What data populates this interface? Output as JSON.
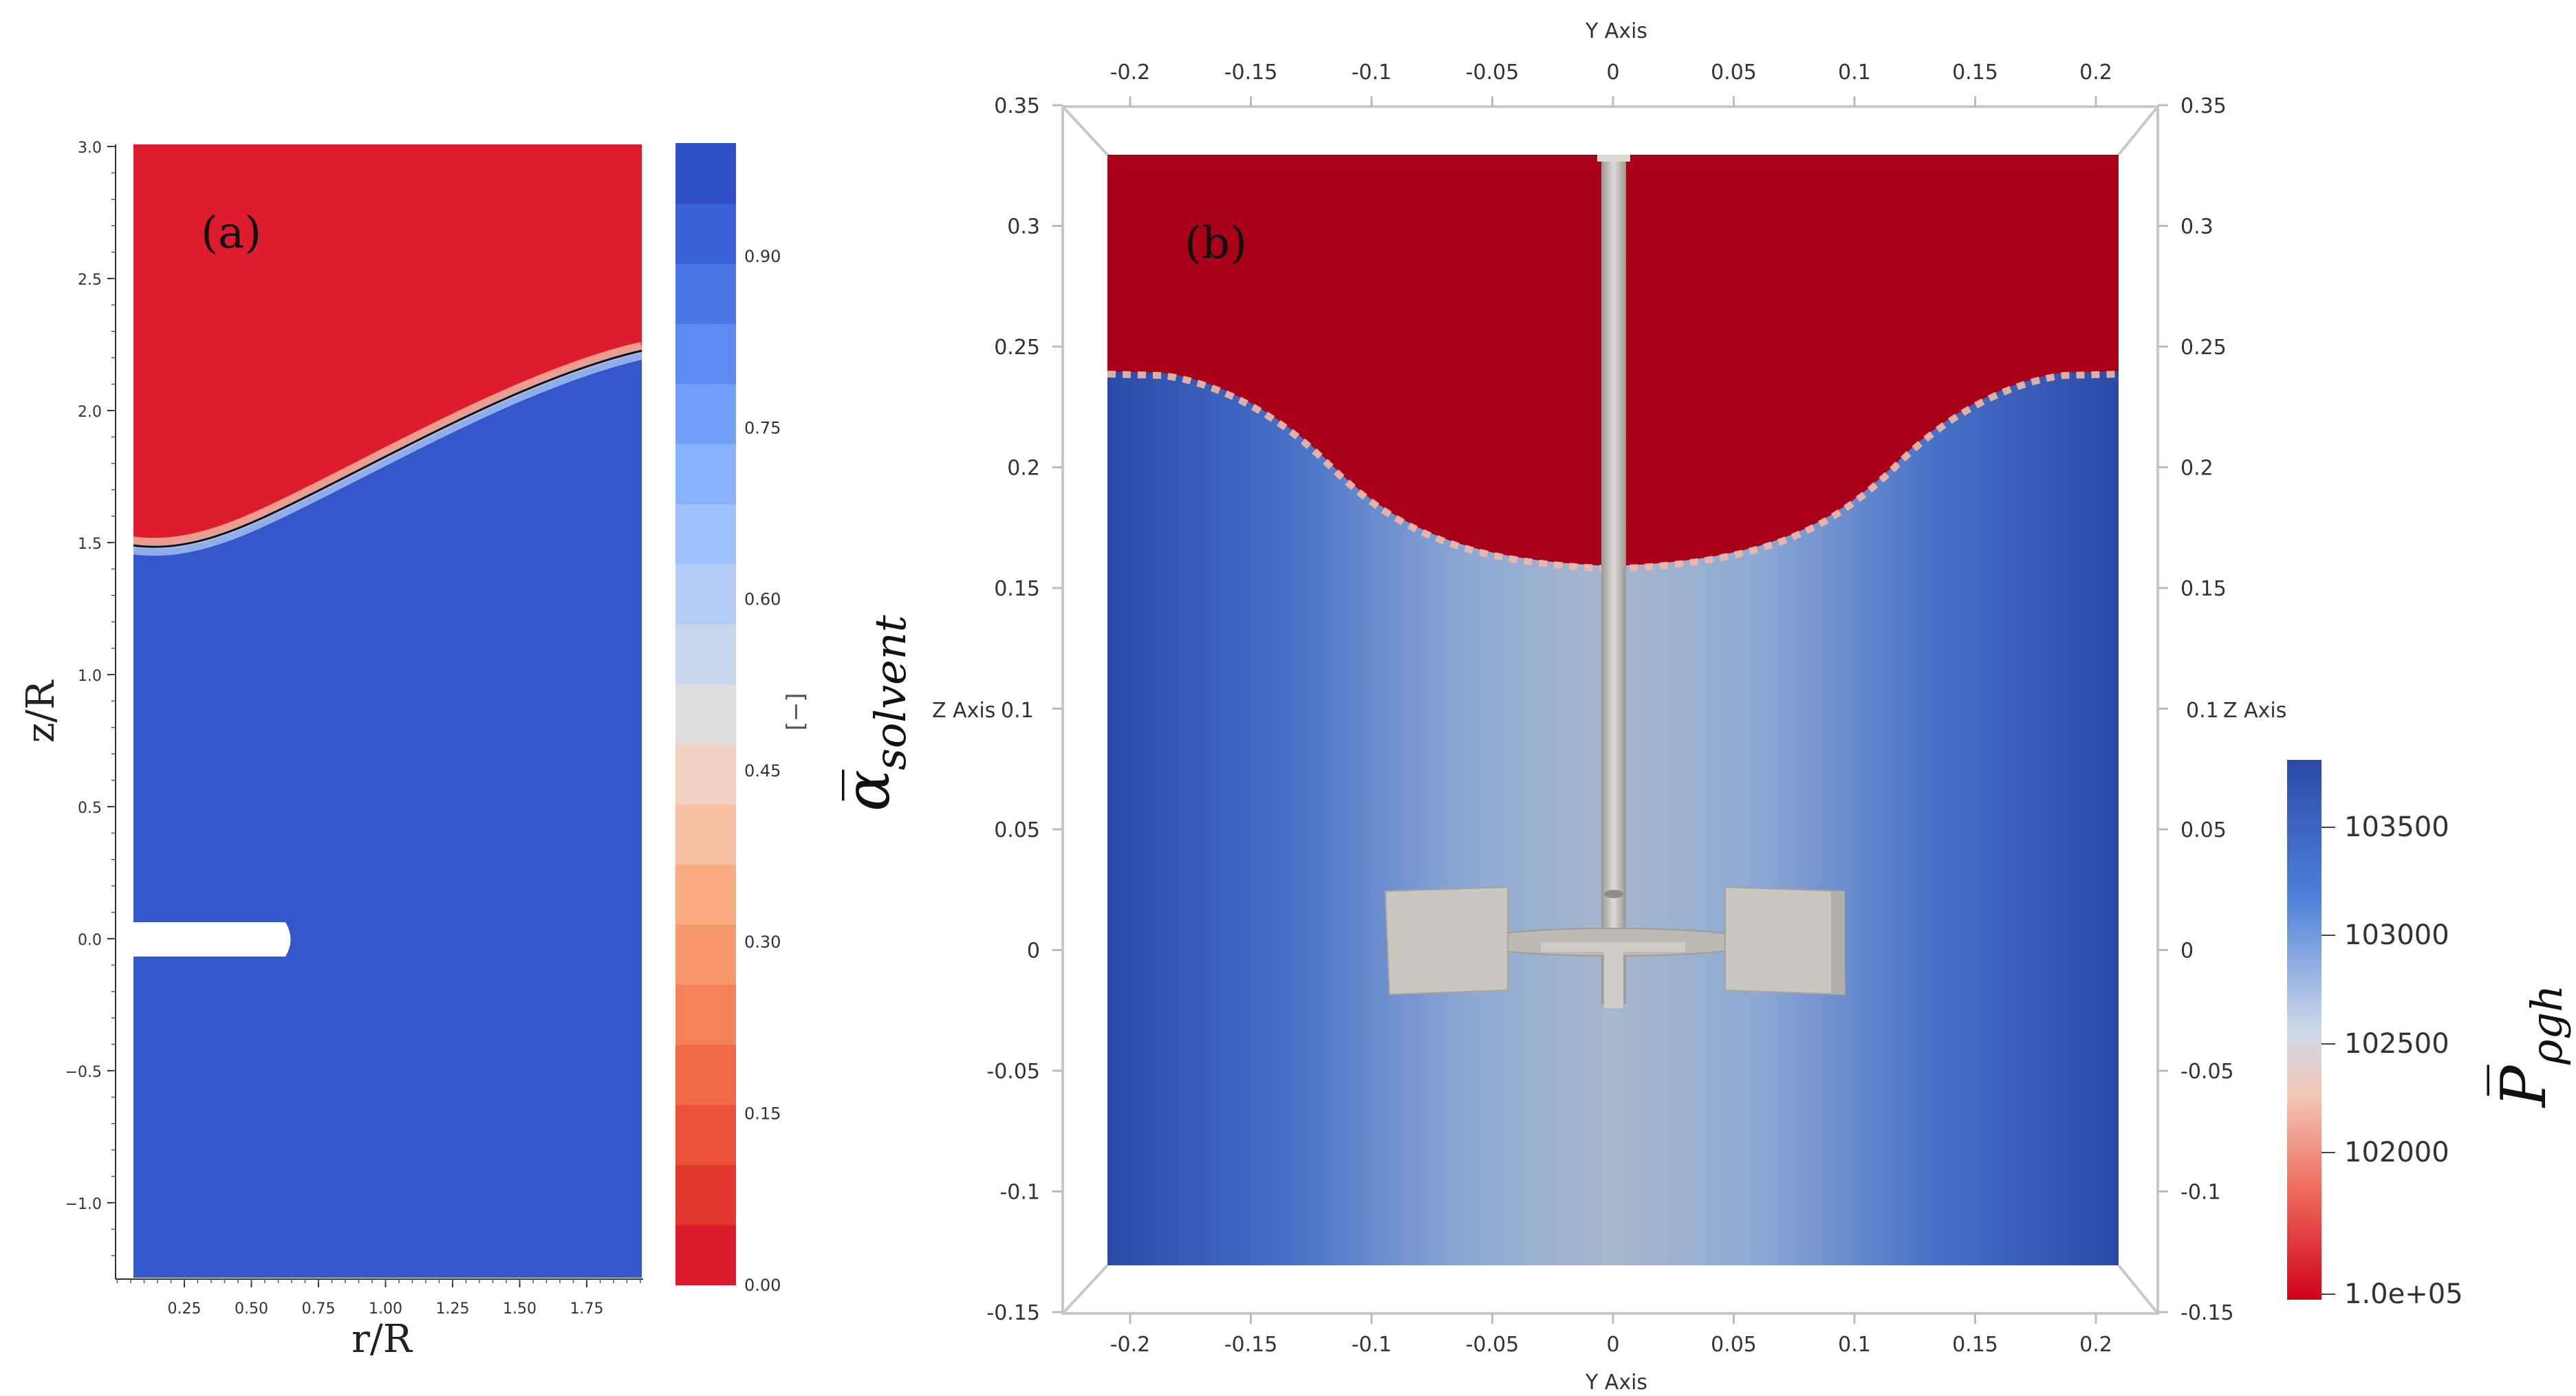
{
  "panel_a": {
    "label": "(a)",
    "xlabel": "r/R",
    "ylabel": "z/R",
    "x_ticks": [
      "0.25",
      "0.50",
      "0.75",
      "1.00",
      "1.25",
      "1.50",
      "1.75"
    ],
    "y_ticks": [
      "3.0",
      "2.5",
      "2.0",
      "1.5",
      "1.0",
      "0.5",
      "0.0",
      "−0.5",
      "−1.0"
    ],
    "colorbar": {
      "ticks": [
        "0.90",
        "0.75",
        "0.60",
        "0.45",
        "0.30",
        "0.15",
        "0.00"
      ],
      "unit": "[−]",
      "title": "α̅",
      "title_sub": "solvent",
      "bands": [
        "#d81a2b",
        "#e2372f",
        "#ea5139",
        "#f06a47",
        "#f48158",
        "#f7976c",
        "#f9ac82",
        "#f7c0a3",
        "#f0d1c2",
        "#e0ddde",
        "#c9d7ec",
        "#b3cdf6",
        "#9ec2fb",
        "#88b2fd",
        "#729ff9",
        "#5d8bf1",
        "#4a76e6",
        "#3a61d8",
        "#2f50c6"
      ]
    },
    "colors": {
      "gas": "#dd1d2e",
      "liquid": "#3458cc"
    }
  },
  "panel_b": {
    "label": "(b)",
    "x_axis_title": "Y Axis",
    "z_axis_title": "Z Axis",
    "z_axis_title_left_tick": "0.1",
    "z_axis_title_right_tick": "0.1",
    "x_ticks": [
      "-0.2",
      "-0.15",
      "-0.1",
      "-0.05",
      "0",
      "0.05",
      "0.1",
      "0.15",
      "0.2"
    ],
    "z_ticks_left": [
      "0.35",
      "0.3",
      "0.25",
      "0.2",
      "0.15",
      "",
      "0.05",
      "0",
      "-0.05",
      "-0.1",
      "-0.15"
    ],
    "z_ticks_right": [
      "0.35",
      "0.3",
      "0.25",
      "0.2",
      "0.15",
      "",
      "0.05",
      "0",
      "-0.05",
      "-0.1",
      "-0.15"
    ],
    "colorbar": {
      "ticks": [
        "103500",
        "103000",
        "102500",
        "102000",
        "1.0e+05"
      ],
      "title": "P̅",
      "title_sub": "ρgh",
      "stops": [
        "#2b4aa8",
        "#4c7fd9",
        "#a9c7ec",
        "#f3c7b6",
        "#ee6a5a",
        "#d0021b"
      ]
    },
    "colors": {
      "gas": "#a80019",
      "liquid_edge": "#2c4ca3",
      "liquid_center": "#a6b8cc",
      "shaft": "#c8c5c0"
    }
  }
}
